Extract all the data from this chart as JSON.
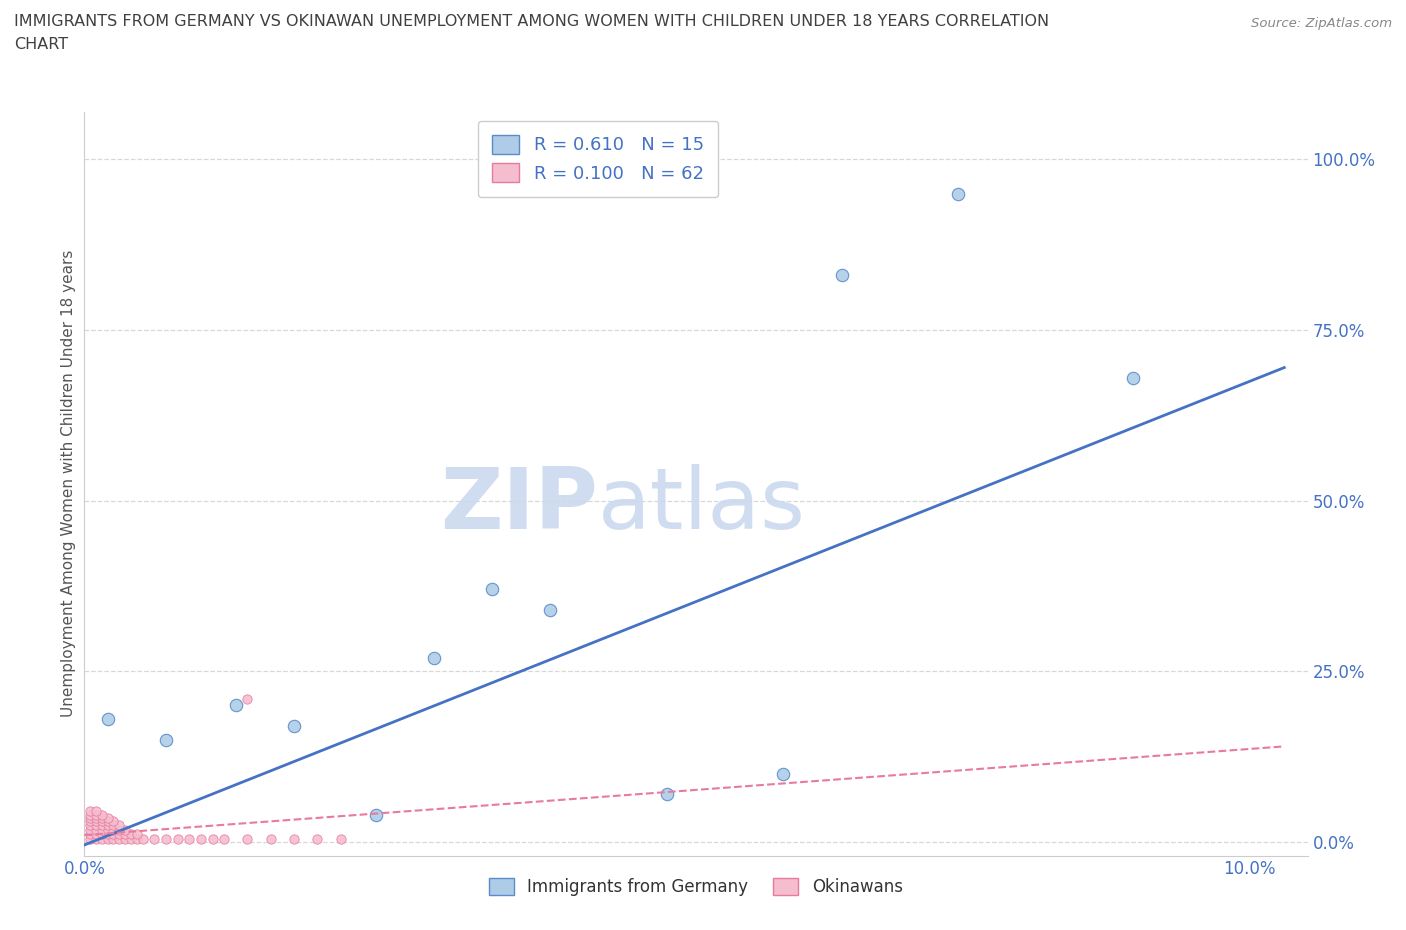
{
  "title_line1": "IMMIGRANTS FROM GERMANY VS OKINAWAN UNEMPLOYMENT AMONG WOMEN WITH CHILDREN UNDER 18 YEARS CORRELATION",
  "title_line2": "CHART",
  "source": "Source: ZipAtlas.com",
  "ylabel": "Unemployment Among Women with Children Under 18 years",
  "xlim": [
    0.0,
    0.105
  ],
  "ylim": [
    -0.02,
    1.07
  ],
  "yticks": [
    0.0,
    0.25,
    0.5,
    0.75,
    1.0
  ],
  "ytick_labels": [
    "0.0%",
    "25.0%",
    "50.0%",
    "75.0%",
    "100.0%"
  ],
  "xticks": [
    0.0,
    0.025,
    0.05,
    0.075,
    0.1
  ],
  "xtick_labels": [
    "0.0%",
    "",
    "",
    "",
    "10.0%"
  ],
  "watermark_zip": "ZIP",
  "watermark_atlas": "atlas",
  "blue_R": 0.61,
  "blue_N": 15,
  "pink_R": 0.1,
  "pink_N": 62,
  "blue_scatter_x": [
    0.002,
    0.007,
    0.013,
    0.018,
    0.025,
    0.03,
    0.035,
    0.04,
    0.05,
    0.06,
    0.065,
    0.075,
    0.09
  ],
  "blue_scatter_y": [
    0.18,
    0.15,
    0.2,
    0.17,
    0.04,
    0.27,
    0.37,
    0.34,
    0.07,
    0.1,
    0.83,
    0.95,
    0.68
  ],
  "blue_line_x": [
    -0.002,
    0.103
  ],
  "blue_line_y": [
    -0.018,
    0.695
  ],
  "pink_line_x": [
    0.0,
    0.103
  ],
  "pink_line_y": [
    0.01,
    0.14
  ],
  "pink_scatter_x": [
    0.0005,
    0.001,
    0.0015,
    0.002,
    0.0025,
    0.003,
    0.0035,
    0.004,
    0.0045,
    0.005,
    0.0005,
    0.001,
    0.0015,
    0.002,
    0.0025,
    0.003,
    0.0035,
    0.004,
    0.0045,
    0.0005,
    0.001,
    0.0015,
    0.002,
    0.0025,
    0.003,
    0.0035,
    0.0005,
    0.001,
    0.0015,
    0.002,
    0.0025,
    0.003,
    0.0005,
    0.001,
    0.0015,
    0.002,
    0.0025,
    0.0005,
    0.001,
    0.0015,
    0.002,
    0.0005,
    0.001,
    0.0015,
    0.0005,
    0.001,
    0.006,
    0.007,
    0.008,
    0.009,
    0.01,
    0.011,
    0.012,
    0.014,
    0.016,
    0.018,
    0.02,
    0.022,
    0.014
  ],
  "pink_scatter_y": [
    0.005,
    0.005,
    0.005,
    0.005,
    0.005,
    0.005,
    0.005,
    0.005,
    0.005,
    0.005,
    0.012,
    0.012,
    0.012,
    0.012,
    0.012,
    0.012,
    0.012,
    0.012,
    0.012,
    0.018,
    0.018,
    0.018,
    0.018,
    0.018,
    0.018,
    0.018,
    0.025,
    0.025,
    0.025,
    0.025,
    0.025,
    0.025,
    0.03,
    0.03,
    0.03,
    0.03,
    0.03,
    0.035,
    0.035,
    0.035,
    0.035,
    0.04,
    0.04,
    0.04,
    0.045,
    0.045,
    0.005,
    0.005,
    0.005,
    0.005,
    0.005,
    0.005,
    0.005,
    0.005,
    0.005,
    0.005,
    0.005,
    0.005,
    0.21
  ],
  "blue_color": "#aecce8",
  "blue_edge_color": "#5b8cc8",
  "blue_line_color": "#4472c4",
  "pink_color": "#f5bece",
  "pink_edge_color": "#e87aa0",
  "pink_line_color": "#e87aa0",
  "bg_color": "#ffffff",
  "grid_color": "#d8d8d8",
  "title_color": "#404040",
  "axis_color": "#4472c4"
}
